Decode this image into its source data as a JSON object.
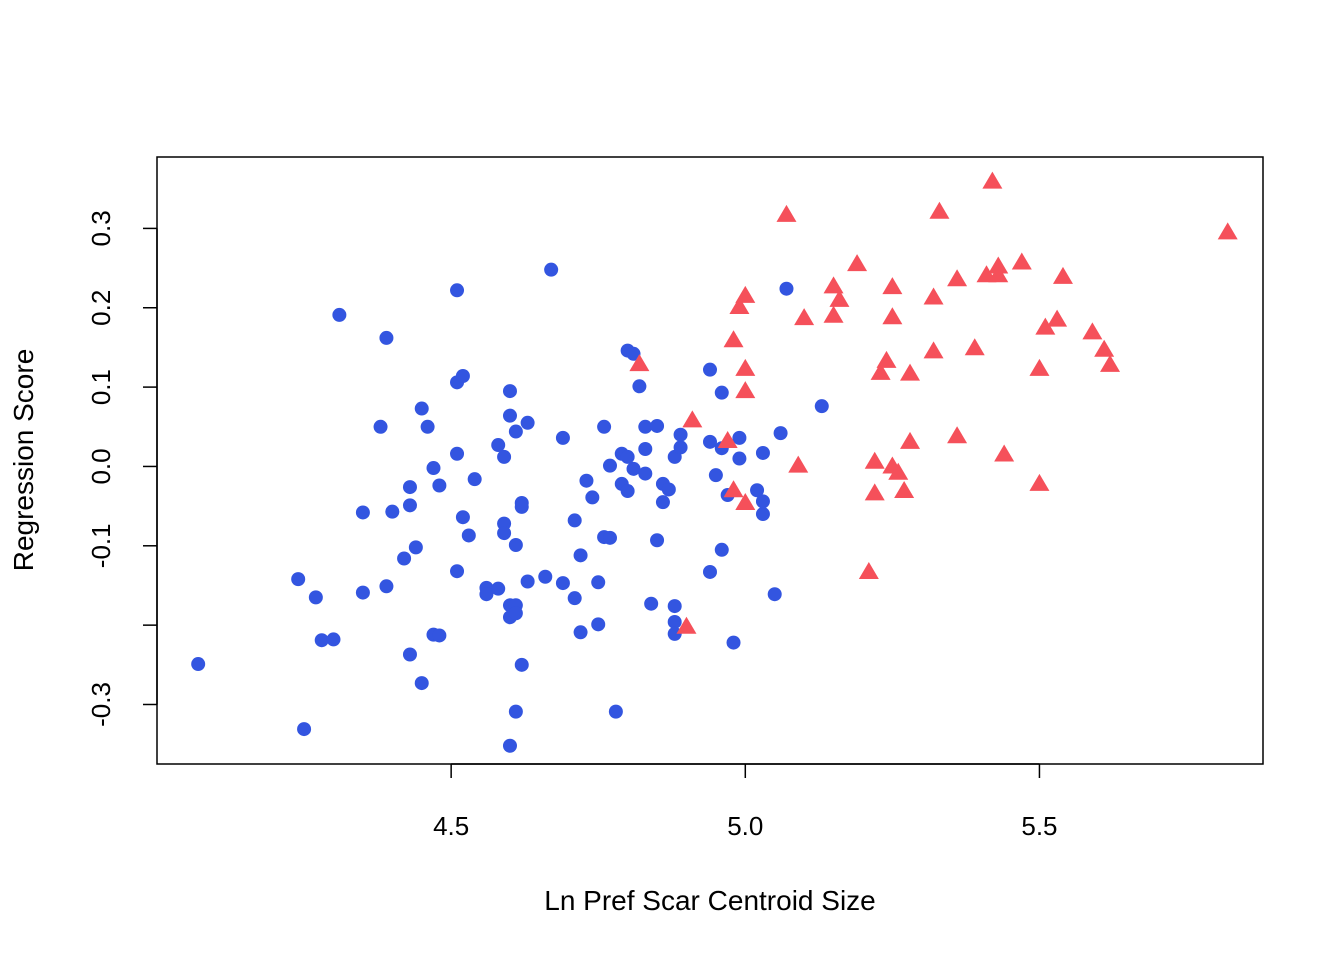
{
  "chart_data": {
    "type": "scatter",
    "title": "",
    "xlabel": "Ln Pref Scar Centroid Size",
    "ylabel": "Regression Score",
    "xlim": [
      4.0,
      5.88
    ],
    "ylim": [
      -0.375,
      0.39
    ],
    "x_ticks": [
      4.5,
      5.0,
      5.5
    ],
    "x_tick_labels": [
      "4.5",
      "5.0",
      "5.5"
    ],
    "y_ticks": [
      -0.3,
      -0.2,
      -0.1,
      0.0,
      0.1,
      0.2,
      0.3
    ],
    "y_tick_labels": [
      "-0.3",
      "",
      "-0.1",
      "0.0",
      "0.1",
      "0.2",
      "0.3"
    ],
    "grid": false,
    "legend": null,
    "series": [
      {
        "marker": "circle",
        "color": "#3355e0",
        "points": [
          [
            4.07,
            -0.249
          ],
          [
            4.25,
            -0.331
          ],
          [
            4.24,
            -0.142
          ],
          [
            4.27,
            -0.165
          ],
          [
            4.28,
            -0.219
          ],
          [
            4.3,
            -0.218
          ],
          [
            4.31,
            0.191
          ],
          [
            4.35,
            -0.058
          ],
          [
            4.35,
            -0.159
          ],
          [
            4.38,
            0.05
          ],
          [
            4.39,
            -0.151
          ],
          [
            4.39,
            0.162
          ],
          [
            4.4,
            -0.057
          ],
          [
            4.42,
            -0.116
          ],
          [
            4.43,
            -0.049
          ],
          [
            4.43,
            -0.026
          ],
          [
            4.43,
            -0.237
          ],
          [
            4.44,
            -0.102
          ],
          [
            4.45,
            0.073
          ],
          [
            4.45,
            -0.273
          ],
          [
            4.46,
            0.05
          ],
          [
            4.47,
            -0.212
          ],
          [
            4.47,
            -0.002
          ],
          [
            4.48,
            -0.024
          ],
          [
            4.48,
            -0.213
          ],
          [
            4.51,
            0.016
          ],
          [
            4.51,
            -0.132
          ],
          [
            4.51,
            0.222
          ],
          [
            4.51,
            0.106
          ],
          [
            4.52,
            0.114
          ],
          [
            4.52,
            -0.064
          ],
          [
            4.53,
            -0.087
          ],
          [
            4.54,
            -0.016
          ],
          [
            4.56,
            -0.153
          ],
          [
            4.56,
            -0.161
          ],
          [
            4.58,
            0.027
          ],
          [
            4.58,
            -0.154
          ],
          [
            4.59,
            0.012
          ],
          [
            4.59,
            -0.072
          ],
          [
            4.59,
            -0.084
          ],
          [
            4.6,
            0.095
          ],
          [
            4.6,
            0.064
          ],
          [
            4.6,
            -0.175
          ],
          [
            4.6,
            -0.19
          ],
          [
            4.61,
            -0.099
          ],
          [
            4.61,
            -0.175
          ],
          [
            4.61,
            -0.185
          ],
          [
            4.61,
            -0.309
          ],
          [
            4.6,
            -0.352
          ],
          [
            4.61,
            0.044
          ],
          [
            4.62,
            -0.046
          ],
          [
            4.62,
            -0.051
          ],
          [
            4.62,
            -0.25
          ],
          [
            4.63,
            0.055
          ],
          [
            4.63,
            -0.145
          ],
          [
            4.66,
            -0.139
          ],
          [
            4.67,
            0.248
          ],
          [
            4.69,
            0.036
          ],
          [
            4.69,
            -0.147
          ],
          [
            4.71,
            -0.166
          ],
          [
            4.71,
            -0.068
          ],
          [
            4.72,
            -0.112
          ],
          [
            4.72,
            -0.209
          ],
          [
            4.73,
            -0.018
          ],
          [
            4.74,
            -0.039
          ],
          [
            4.75,
            -0.146
          ],
          [
            4.75,
            -0.199
          ],
          [
            4.76,
            -0.089
          ],
          [
            4.76,
            0.05
          ],
          [
            4.77,
            -0.09
          ],
          [
            4.77,
            0.001
          ],
          [
            4.78,
            -0.309
          ],
          [
            4.79,
            0.016
          ],
          [
            4.79,
            -0.022
          ],
          [
            4.8,
            0.012
          ],
          [
            4.8,
            -0.031
          ],
          [
            4.8,
            0.146
          ],
          [
            4.81,
            0.142
          ],
          [
            4.81,
            -0.003
          ],
          [
            4.82,
            0.101
          ],
          [
            4.83,
            0.05
          ],
          [
            4.83,
            0.022
          ],
          [
            4.83,
            -0.009
          ],
          [
            4.84,
            -0.173
          ],
          [
            4.85,
            0.051
          ],
          [
            4.85,
            -0.093
          ],
          [
            4.86,
            -0.045
          ],
          [
            4.86,
            -0.022
          ],
          [
            4.87,
            -0.029
          ],
          [
            4.88,
            -0.176
          ],
          [
            4.88,
            -0.196
          ],
          [
            4.88,
            -0.211
          ],
          [
            4.88,
            0.012
          ],
          [
            4.89,
            0.024
          ],
          [
            4.89,
            0.04
          ],
          [
            4.94,
            0.122
          ],
          [
            4.94,
            -0.133
          ],
          [
            4.94,
            0.031
          ],
          [
            4.95,
            -0.011
          ],
          [
            4.96,
            0.023
          ],
          [
            4.96,
            0.093
          ],
          [
            4.96,
            -0.105
          ],
          [
            4.97,
            -0.036
          ],
          [
            4.98,
            -0.222
          ],
          [
            4.99,
            0.036
          ],
          [
            4.99,
            0.01
          ],
          [
            5.02,
            -0.03
          ],
          [
            5.03,
            0.017
          ],
          [
            5.03,
            -0.06
          ],
          [
            5.03,
            -0.044
          ],
          [
            5.05,
            -0.161
          ],
          [
            5.06,
            0.042
          ],
          [
            5.07,
            0.224
          ],
          [
            5.13,
            0.076
          ]
        ]
      },
      {
        "marker": "triangle",
        "color": "#f5505a",
        "points": [
          [
            4.82,
            0.129
          ],
          [
            4.9,
            -0.202
          ],
          [
            4.91,
            0.058
          ],
          [
            4.97,
            0.032
          ],
          [
            4.98,
            0.159
          ],
          [
            4.98,
            -0.03
          ],
          [
            4.99,
            0.201
          ],
          [
            5.0,
            0.215
          ],
          [
            5.0,
            -0.046
          ],
          [
            5.0,
            0.123
          ],
          [
            5.0,
            0.095
          ],
          [
            5.07,
            0.317
          ],
          [
            5.09,
            0.001
          ],
          [
            5.1,
            0.187
          ],
          [
            5.15,
            0.227
          ],
          [
            5.15,
            0.19
          ],
          [
            5.16,
            0.21
          ],
          [
            5.19,
            0.255
          ],
          [
            5.21,
            -0.133
          ],
          [
            5.22,
            0.006
          ],
          [
            5.22,
            -0.034
          ],
          [
            5.23,
            0.118
          ],
          [
            5.24,
            0.133
          ],
          [
            5.25,
            0.226
          ],
          [
            5.25,
            0.188
          ],
          [
            5.25,
            0.0
          ],
          [
            5.26,
            -0.008
          ],
          [
            5.27,
            -0.031
          ],
          [
            5.28,
            0.117
          ],
          [
            5.28,
            0.031
          ],
          [
            5.32,
            0.145
          ],
          [
            5.32,
            0.213
          ],
          [
            5.33,
            0.321
          ],
          [
            5.36,
            0.236
          ],
          [
            5.36,
            0.038
          ],
          [
            5.39,
            0.149
          ],
          [
            5.41,
            0.241
          ],
          [
            5.42,
            0.359
          ],
          [
            5.43,
            0.252
          ],
          [
            5.43,
            0.241
          ],
          [
            5.44,
            0.015
          ],
          [
            5.47,
            0.257
          ],
          [
            5.5,
            -0.022
          ],
          [
            5.5,
            0.123
          ],
          [
            5.51,
            0.175
          ],
          [
            5.53,
            0.185
          ],
          [
            5.54,
            0.239
          ],
          [
            5.59,
            0.169
          ],
          [
            5.61,
            0.147
          ],
          [
            5.62,
            0.128
          ],
          [
            5.82,
            0.295
          ]
        ]
      }
    ]
  }
}
